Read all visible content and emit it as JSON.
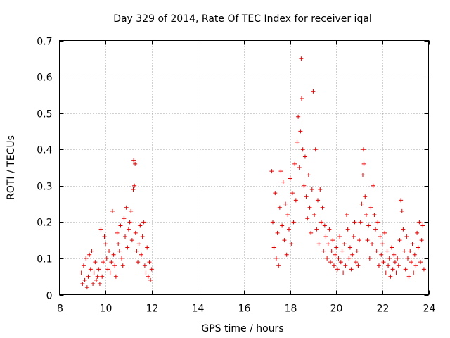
{
  "chart_data": {
    "type": "scatter",
    "title": "Day 329 of 2014, Rate Of TEC Index for receiver iqal",
    "xlabel": "GPS time / hours",
    "ylabel": "ROTI / TECUs",
    "xlim": [
      8,
      24
    ],
    "ylim": [
      0,
      0.7
    ],
    "xticks": [
      8,
      10,
      12,
      14,
      16,
      18,
      20,
      22,
      24
    ],
    "yticks": [
      0,
      0.1,
      0.2,
      0.3,
      0.4,
      0.5,
      0.6,
      0.7
    ],
    "xtick_labels": [
      "8",
      "10",
      "12",
      "14",
      "16",
      "18",
      "20",
      "22",
      "24"
    ],
    "ytick_labels": [
      "0",
      "0.1",
      "0.2",
      "0.3",
      "0.4",
      "0.5",
      "0.6",
      "0.7"
    ],
    "grid": true,
    "marker": "+",
    "marker_color": "#e00000",
    "series": [
      {
        "name": "iqal",
        "points": [
          [
            8.95,
            0.06
          ],
          [
            9.0,
            0.03
          ],
          [
            9.05,
            0.08
          ],
          [
            9.1,
            0.04
          ],
          [
            9.15,
            0.1
          ],
          [
            9.2,
            0.02
          ],
          [
            9.25,
            0.05
          ],
          [
            9.3,
            0.11
          ],
          [
            9.35,
            0.07
          ],
          [
            9.4,
            0.12
          ],
          [
            9.45,
            0.03
          ],
          [
            9.5,
            0.06
          ],
          [
            9.55,
            0.09
          ],
          [
            9.6,
            0.04
          ],
          [
            9.65,
            0.05
          ],
          [
            9.7,
            0.07
          ],
          [
            9.75,
            0.03
          ],
          [
            9.8,
            0.18
          ],
          [
            9.85,
            0.05
          ],
          [
            9.9,
            0.09
          ],
          [
            9.95,
            0.16
          ],
          [
            10.0,
            0.14
          ],
          [
            10.05,
            0.1
          ],
          [
            10.1,
            0.07
          ],
          [
            10.15,
            0.12
          ],
          [
            10.2,
            0.06
          ],
          [
            10.25,
            0.09
          ],
          [
            10.3,
            0.23
          ],
          [
            10.35,
            0.11
          ],
          [
            10.4,
            0.08
          ],
          [
            10.45,
            0.05
          ],
          [
            10.5,
            0.17
          ],
          [
            10.55,
            0.14
          ],
          [
            10.6,
            0.12
          ],
          [
            10.65,
            0.19
          ],
          [
            10.7,
            0.1
          ],
          [
            10.75,
            0.08
          ],
          [
            10.8,
            0.21
          ],
          [
            10.85,
            0.16
          ],
          [
            10.9,
            0.24
          ],
          [
            10.95,
            0.13
          ],
          [
            11.0,
            0.18
          ],
          [
            11.05,
            0.2
          ],
          [
            11.1,
            0.23
          ],
          [
            11.15,
            0.15
          ],
          [
            11.2,
            0.29
          ],
          [
            11.22,
            0.37
          ],
          [
            11.25,
            0.3
          ],
          [
            11.28,
            0.36
          ],
          [
            11.3,
            0.17
          ],
          [
            11.35,
            0.12
          ],
          [
            11.4,
            0.09
          ],
          [
            11.45,
            0.14
          ],
          [
            11.5,
            0.19
          ],
          [
            11.55,
            0.11
          ],
          [
            11.6,
            0.16
          ],
          [
            11.65,
            0.2
          ],
          [
            11.7,
            0.08
          ],
          [
            11.75,
            0.06
          ],
          [
            11.8,
            0.13
          ],
          [
            11.85,
            0.05
          ],
          [
            11.9,
            0.09
          ],
          [
            11.95,
            0.04
          ],
          [
            12.0,
            0.07
          ],
          [
            17.2,
            0.34
          ],
          [
            17.25,
            0.2
          ],
          [
            17.3,
            0.13
          ],
          [
            17.35,
            0.28
          ],
          [
            17.4,
            0.1
          ],
          [
            17.45,
            0.17
          ],
          [
            17.5,
            0.08
          ],
          [
            17.55,
            0.24
          ],
          [
            17.6,
            0.34
          ],
          [
            17.65,
            0.19
          ],
          [
            17.7,
            0.31
          ],
          [
            17.75,
            0.15
          ],
          [
            17.8,
            0.25
          ],
          [
            17.85,
            0.11
          ],
          [
            17.9,
            0.22
          ],
          [
            17.95,
            0.18
          ],
          [
            18.0,
            0.32
          ],
          [
            18.05,
            0.14
          ],
          [
            18.1,
            0.28
          ],
          [
            18.15,
            0.2
          ],
          [
            18.2,
            0.36
          ],
          [
            18.25,
            0.26
          ],
          [
            18.3,
            0.42
          ],
          [
            18.35,
            0.49
          ],
          [
            18.4,
            0.35
          ],
          [
            18.45,
            0.45
          ],
          [
            18.48,
            0.65
          ],
          [
            18.5,
            0.54
          ],
          [
            18.55,
            0.4
          ],
          [
            18.6,
            0.3
          ],
          [
            18.65,
            0.38
          ],
          [
            18.7,
            0.27
          ],
          [
            18.75,
            0.21
          ],
          [
            18.8,
            0.33
          ],
          [
            18.85,
            0.24
          ],
          [
            18.9,
            0.17
          ],
          [
            18.95,
            0.29
          ],
          [
            19.0,
            0.56
          ],
          [
            19.05,
            0.22
          ],
          [
            19.1,
            0.4
          ],
          [
            19.15,
            0.18
          ],
          [
            19.2,
            0.26
          ],
          [
            19.25,
            0.14
          ],
          [
            19.3,
            0.29
          ],
          [
            19.35,
            0.2
          ],
          [
            19.4,
            0.24
          ],
          [
            19.45,
            0.12
          ],
          [
            19.5,
            0.19
          ],
          [
            19.55,
            0.16
          ],
          [
            19.6,
            0.1
          ],
          [
            19.65,
            0.14
          ],
          [
            19.7,
            0.18
          ],
          [
            19.75,
            0.09
          ],
          [
            19.8,
            0.12
          ],
          [
            19.85,
            0.15
          ],
          [
            19.9,
            0.08
          ],
          [
            19.95,
            0.11
          ],
          [
            20.0,
            0.13
          ],
          [
            20.05,
            0.07
          ],
          [
            20.1,
            0.1
          ],
          [
            20.15,
            0.16
          ],
          [
            20.2,
            0.09
          ],
          [
            20.25,
            0.12
          ],
          [
            20.3,
            0.06
          ],
          [
            20.35,
            0.14
          ],
          [
            20.4,
            0.08
          ],
          [
            20.45,
            0.22
          ],
          [
            20.5,
            0.18
          ],
          [
            20.55,
            0.1
          ],
          [
            20.6,
            0.13
          ],
          [
            20.65,
            0.07
          ],
          [
            20.7,
            0.11
          ],
          [
            20.75,
            0.16
          ],
          [
            20.8,
            0.2
          ],
          [
            20.85,
            0.09
          ],
          [
            20.9,
            0.12
          ],
          [
            20.95,
            0.08
          ],
          [
            21.0,
            0.15
          ],
          [
            21.05,
            0.2
          ],
          [
            21.1,
            0.25
          ],
          [
            21.15,
            0.33
          ],
          [
            21.18,
            0.4
          ],
          [
            21.2,
            0.36
          ],
          [
            21.25,
            0.27
          ],
          [
            21.3,
            0.22
          ],
          [
            21.35,
            0.15
          ],
          [
            21.4,
            0.19
          ],
          [
            21.45,
            0.1
          ],
          [
            21.5,
            0.24
          ],
          [
            21.55,
            0.14
          ],
          [
            21.6,
            0.3
          ],
          [
            21.65,
            0.22
          ],
          [
            21.7,
            0.18
          ],
          [
            21.75,
            0.12
          ],
          [
            21.8,
            0.2
          ],
          [
            21.85,
            0.08
          ],
          [
            21.9,
            0.16
          ],
          [
            21.95,
            0.11
          ],
          [
            22.0,
            0.14
          ],
          [
            22.05,
            0.09
          ],
          [
            22.1,
            0.17
          ],
          [
            22.15,
            0.06
          ],
          [
            22.2,
            0.12
          ],
          [
            22.25,
            0.08
          ],
          [
            22.3,
            0.1
          ],
          [
            22.35,
            0.05
          ],
          [
            22.4,
            0.13
          ],
          [
            22.45,
            0.07
          ],
          [
            22.5,
            0.11
          ],
          [
            22.55,
            0.09
          ],
          [
            22.6,
            0.06
          ],
          [
            22.65,
            0.1
          ],
          [
            22.7,
            0.08
          ],
          [
            22.75,
            0.15
          ],
          [
            22.8,
            0.26
          ],
          [
            22.85,
            0.23
          ],
          [
            22.9,
            0.18
          ],
          [
            22.95,
            0.12
          ],
          [
            23.0,
            0.07
          ],
          [
            23.05,
            0.16
          ],
          [
            23.1,
            0.1
          ],
          [
            23.15,
            0.05
          ],
          [
            23.2,
            0.12
          ],
          [
            23.25,
            0.09
          ],
          [
            23.3,
            0.14
          ],
          [
            23.35,
            0.06
          ],
          [
            23.4,
            0.11
          ],
          [
            23.45,
            0.08
          ],
          [
            23.5,
            0.17
          ],
          [
            23.55,
            0.13
          ],
          [
            23.6,
            0.2
          ],
          [
            23.65,
            0.09
          ],
          [
            23.7,
            0.15
          ],
          [
            23.75,
            0.19
          ],
          [
            23.8,
            0.07
          ]
        ]
      }
    ]
  }
}
